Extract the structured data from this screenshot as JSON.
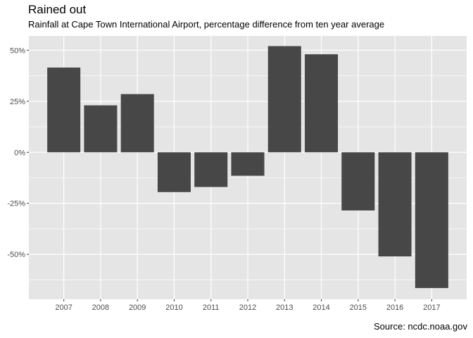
{
  "chart_data": {
    "type": "bar",
    "title": "Rained out",
    "subtitle": "Rainfall at Cape Town International Airport, percentage difference from ten year average",
    "caption": "Source: ncdc.noaa.gov",
    "xlabel": "",
    "ylabel": "",
    "categories": [
      "2007",
      "2008",
      "2009",
      "2010",
      "2011",
      "2012",
      "2013",
      "2014",
      "2015",
      "2016",
      "2017"
    ],
    "values": [
      41.5,
      23,
      28.5,
      -19.5,
      -17,
      -11.5,
      52,
      48,
      -28.5,
      -51,
      -66.5
    ],
    "ylim": [
      -72,
      57
    ],
    "yticks": [
      50,
      25,
      0,
      -25,
      -50
    ],
    "ytick_labels": [
      "50%",
      "25%",
      "0%",
      "-25%",
      "-50%"
    ],
    "grid": true,
    "bar_color": "#474747",
    "panel_color": "#e5e5e5",
    "grid_color": "#ffffff"
  }
}
